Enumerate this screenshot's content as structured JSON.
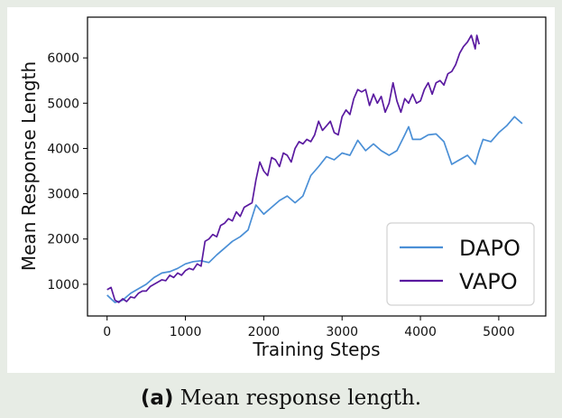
{
  "caption": {
    "label": "(a)",
    "text": "Mean response length."
  },
  "colors": {
    "dapo": "#4a8fd6",
    "vapo": "#5a1aa0",
    "background": "#e7ece5"
  },
  "chart_data": {
    "type": "line",
    "title": "",
    "xlabel": "Training Steps",
    "ylabel": "Mean Response Length",
    "xlim": [
      -250,
      5600
    ],
    "ylim": [
      300,
      6900
    ],
    "xticks": [
      0,
      1000,
      2000,
      3000,
      4000,
      5000
    ],
    "yticks": [
      1000,
      2000,
      3000,
      4000,
      5000,
      6000
    ],
    "grid": false,
    "legend": {
      "position": "bottom-right",
      "entries": [
        "DAPO",
        "VAPO"
      ]
    },
    "series": [
      {
        "name": "DAPO",
        "color": "#4a8fd6",
        "x": [
          0,
          100,
          200,
          300,
          400,
          500,
          600,
          700,
          800,
          900,
          1000,
          1100,
          1200,
          1300,
          1400,
          1500,
          1600,
          1700,
          1800,
          1900,
          2000,
          2100,
          2200,
          2300,
          2400,
          2500,
          2600,
          2700,
          2800,
          2900,
          3000,
          3100,
          3200,
          3300,
          3400,
          3500,
          3600,
          3700,
          3800,
          3850,
          3900,
          4000,
          4100,
          4200,
          4300,
          4400,
          4500,
          4600,
          4700,
          4750,
          4800,
          4900,
          5000,
          5100,
          5200,
          5300
        ],
        "y": [
          760,
          600,
          650,
          800,
          900,
          1000,
          1150,
          1250,
          1280,
          1350,
          1450,
          1500,
          1520,
          1480,
          1650,
          1800,
          1950,
          2050,
          2200,
          2750,
          2550,
          2700,
          2850,
          2950,
          2800,
          2950,
          3400,
          3600,
          3820,
          3750,
          3900,
          3850,
          4180,
          3950,
          4100,
          3950,
          3850,
          3950,
          4300,
          4480,
          4200,
          4200,
          4300,
          4320,
          4150,
          3650,
          3750,
          3850,
          3650,
          3950,
          4200,
          4150,
          4350,
          4500,
          4700,
          4550
        ]
      },
      {
        "name": "VAPO",
        "color": "#5a1aa0",
        "x": [
          0,
          50,
          100,
          150,
          200,
          250,
          300,
          350,
          400,
          450,
          500,
          550,
          600,
          650,
          700,
          750,
          800,
          850,
          900,
          950,
          1000,
          1050,
          1100,
          1150,
          1200,
          1250,
          1300,
          1350,
          1400,
          1450,
          1500,
          1550,
          1600,
          1650,
          1700,
          1750,
          1800,
          1850,
          1900,
          1950,
          2000,
          2050,
          2100,
          2150,
          2200,
          2250,
          2300,
          2350,
          2400,
          2450,
          2500,
          2550,
          2600,
          2650,
          2700,
          2750,
          2800,
          2850,
          2900,
          2950,
          3000,
          3050,
          3100,
          3150,
          3200,
          3250,
          3300,
          3350,
          3400,
          3450,
          3500,
          3550,
          3600,
          3650,
          3700,
          3750,
          3800,
          3850,
          3900,
          3950,
          4000,
          4050,
          4100,
          4150,
          4200,
          4250,
          4300,
          4350,
          4400,
          4450,
          4500,
          4550,
          4600,
          4650,
          4700,
          4720,
          4750
        ],
        "y": [
          880,
          930,
          650,
          600,
          680,
          620,
          720,
          700,
          800,
          850,
          850,
          950,
          1000,
          1050,
          1100,
          1080,
          1200,
          1150,
          1250,
          1200,
          1300,
          1350,
          1320,
          1450,
          1400,
          1950,
          2000,
          2100,
          2050,
          2300,
          2350,
          2450,
          2400,
          2600,
          2500,
          2700,
          2750,
          2800,
          3300,
          3700,
          3500,
          3400,
          3800,
          3750,
          3600,
          3900,
          3850,
          3700,
          4000,
          4150,
          4100,
          4200,
          4150,
          4300,
          4600,
          4400,
          4500,
          4600,
          4350,
          4300,
          4700,
          4850,
          4750,
          5100,
          5300,
          5250,
          5300,
          4950,
          5200,
          5000,
          5150,
          4800,
          5000,
          5450,
          5050,
          4800,
          5100,
          5000,
          5200,
          5000,
          5050,
          5300,
          5450,
          5200,
          5450,
          5500,
          5400,
          5650,
          5700,
          5850,
          6100,
          6250,
          6350,
          6500,
          6200,
          6500,
          6300
        ]
      }
    ]
  }
}
